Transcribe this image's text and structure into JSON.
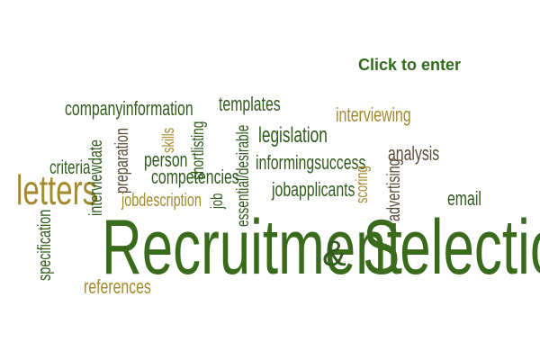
{
  "link": {
    "click_to_enter": "Click to enter"
  },
  "title": {
    "recruitment": "Recruitment",
    "amp": "&",
    "selection": "Selection"
  },
  "words": {
    "companyinformation": "companyinformation",
    "templates": "templates",
    "interviewing": "interviewing",
    "legislation": "legislation",
    "skills": "skills",
    "shortlisting": "shortlisting",
    "essential_desirable": "essential/desirable",
    "preparation": "preparation",
    "interviewdate": "interviewdate",
    "criteria": "criteria",
    "person": "person",
    "competencies": "competencies",
    "informingsuccess": "informingsuccess",
    "analysis": "analysis",
    "letters": "letters",
    "jobdescription": "jobdescription",
    "job": "job",
    "jobapplicants": "jobapplicants",
    "scoring": "scoring",
    "advertising": "advertising",
    "email": "email",
    "specification": "specification",
    "references": "references"
  },
  "colors": {
    "dark_green": "#2f5a1b",
    "olive": "#6f7a2a",
    "gold": "#a38a2e",
    "brown": "#5a4a36",
    "title_green": "#3a6a1c"
  }
}
